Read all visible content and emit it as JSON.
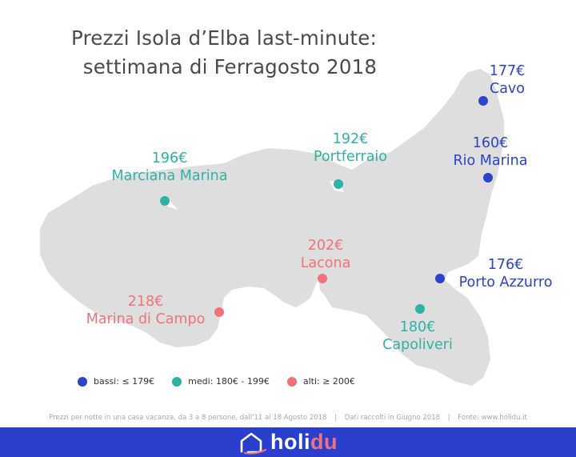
{
  "title": {
    "line1": "Prezzi Isola d’Elba last-minute:",
    "line2": "settimana di Ferragosto 2018"
  },
  "colors": {
    "island": "#dedede",
    "low": "#2d44c4",
    "medium": "#2fb1a5",
    "high": "#f0727a",
    "footer_bg": "#2b3fce",
    "title": "#4a4a4a"
  },
  "locations": [
    {
      "name": "Cavo",
      "price": "177€",
      "category": "low"
    },
    {
      "name": "Rio Marina",
      "price": "160€",
      "category": "low"
    },
    {
      "name": "Porto Azzurro",
      "price": "176€",
      "category": "low"
    },
    {
      "name": "Capoliveri",
      "price": "180€",
      "category": "medium"
    },
    {
      "name": "Portferraio",
      "price": "192€",
      "category": "medium"
    },
    {
      "name": "Marciana Marina",
      "price": "196€",
      "category": "medium"
    },
    {
      "name": "Lacona",
      "price": "202€",
      "category": "high"
    },
    {
      "name": "Marina di Campo",
      "price": "218€",
      "category": "high"
    }
  ],
  "legend": [
    {
      "label": "bassi: ≤ 179€",
      "category": "low"
    },
    {
      "label": "medi: 180€ - 199€",
      "category": "medium"
    },
    {
      "label": "alti: ≥ 200€",
      "category": "high"
    }
  ],
  "footnote": {
    "part1": "Prezzi per notte in una casa vacanza, da 3 a 8 persone, dall'11 al 18 Agosto 2018",
    "part2": "Dati raccolti in Giugno 2018",
    "part3": "Fonte: www.holidu.it",
    "separator": "|"
  },
  "brand": {
    "name_prefix": "holi",
    "name_suffix": "du",
    "logo_icon": "house-outline-icon"
  }
}
